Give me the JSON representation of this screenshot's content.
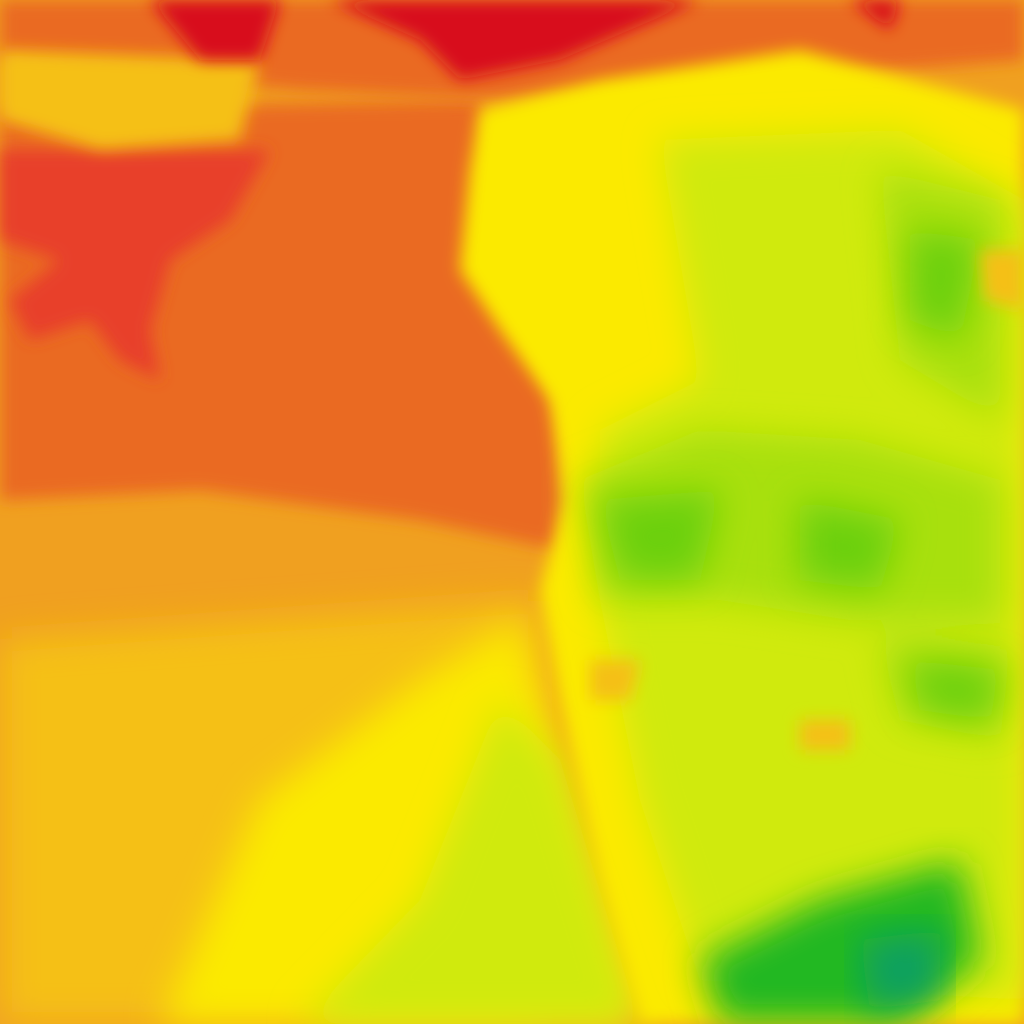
{
  "map": {
    "type": "raster-heatmap-tile",
    "palette": {
      "deep_red": "#d8081f",
      "red": "#e8402a",
      "orange": "#ea6a22",
      "light_orange": "#f0a020",
      "amber": "#f5c012",
      "yellow": "#fbea00",
      "yellow_green": "#d0ea10",
      "light_green": "#a8e010",
      "green": "#6cd010",
      "dark_green": "#20b820",
      "teal": "#10a060"
    }
  }
}
